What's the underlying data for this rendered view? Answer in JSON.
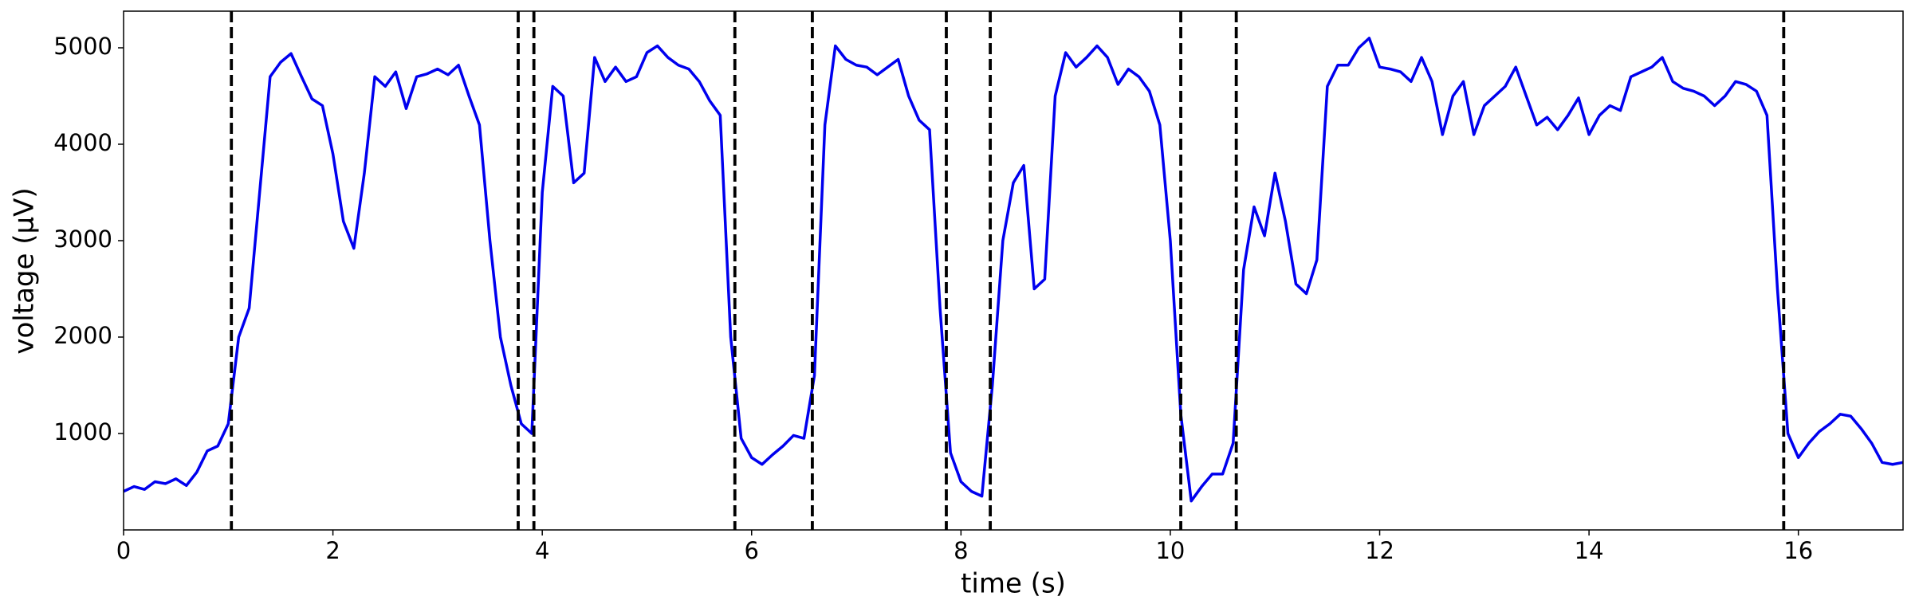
{
  "chart_data": {
    "type": "line",
    "xlabel": "time (s)",
    "ylabel": "voltage (μV)",
    "x": [
      0,
      0.1,
      0.2,
      0.3,
      0.4,
      0.5,
      0.6,
      0.7,
      0.8,
      0.9,
      1,
      1.1,
      1.2,
      1.3,
      1.4,
      1.5,
      1.6,
      1.7,
      1.8,
      1.9,
      2,
      2.1,
      2.2,
      2.3,
      2.4,
      2.5,
      2.6,
      2.7,
      2.8,
      2.9,
      3,
      3.1,
      3.2,
      3.3,
      3.4,
      3.5,
      3.6,
      3.7,
      3.8,
      3.9,
      4,
      4.1,
      4.2,
      4.3,
      4.4,
      4.5,
      4.6,
      4.7,
      4.8,
      4.9,
      5,
      5.1,
      5.2,
      5.3,
      5.4,
      5.5,
      5.6,
      5.7,
      5.8,
      5.9,
      6,
      6.1,
      6.2,
      6.3,
      6.4,
      6.5,
      6.6,
      6.7,
      6.8,
      6.9,
      7,
      7.1,
      7.2,
      7.3,
      7.4,
      7.5,
      7.6,
      7.7,
      7.8,
      7.9,
      8,
      8.1,
      8.2,
      8.3,
      8.4,
      8.5,
      8.6,
      8.7,
      8.8,
      8.9,
      9,
      9.1,
      9.2,
      9.3,
      9.4,
      9.5,
      9.6,
      9.7,
      9.8,
      9.9,
      10,
      10.1,
      10.2,
      10.3,
      10.4,
      10.5,
      10.6,
      10.7,
      10.8,
      10.9,
      11,
      11.1,
      11.2,
      11.3,
      11.4,
      11.5,
      11.6,
      11.7,
      11.8,
      11.9,
      12,
      12.1,
      12.2,
      12.3,
      12.4,
      12.5,
      12.6,
      12.7,
      12.8,
      12.9,
      13,
      13.1,
      13.2,
      13.3,
      13.4,
      13.5,
      13.6,
      13.7,
      13.8,
      13.9,
      14,
      14.1,
      14.2,
      14.3,
      14.4,
      14.5,
      14.6,
      14.7,
      14.8,
      14.9,
      15,
      15.1,
      15.2,
      15.3,
      15.4,
      15.5,
      15.6,
      15.7,
      15.8,
      15.9,
      16,
      16.1,
      16.2,
      16.3,
      16.4,
      16.5,
      16.6,
      16.7,
      16.8,
      16.9,
      17
    ],
    "values": [
      400,
      450,
      420,
      500,
      480,
      530,
      460,
      600,
      820,
      870,
      1100,
      2000,
      2300,
      3500,
      4700,
      4850,
      4940,
      4700,
      4470,
      4400,
      3900,
      3200,
      2920,
      3700,
      4700,
      4600,
      4750,
      4370,
      4700,
      4730,
      4780,
      4720,
      4820,
      4500,
      4200,
      3000,
      2000,
      1500,
      1100,
      1000,
      3500,
      4600,
      4500,
      3600,
      3700,
      4900,
      4650,
      4800,
      4650,
      4700,
      4950,
      5020,
      4900,
      4820,
      4780,
      4650,
      4450,
      4300,
      2000,
      950,
      750,
      680,
      780,
      870,
      980,
      950,
      1600,
      4200,
      5020,
      4880,
      4820,
      4800,
      4720,
      4800,
      4880,
      4500,
      4250,
      4150,
      2300,
      800,
      500,
      400,
      350,
      1500,
      3000,
      3600,
      3780,
      2500,
      2600,
      4500,
      4950,
      4800,
      4900,
      5020,
      4900,
      4620,
      4780,
      4700,
      4550,
      4200,
      3000,
      1200,
      300,
      450,
      580,
      580,
      900,
      2700,
      3350,
      3050,
      3700,
      3200,
      2550,
      2450,
      2800,
      4600,
      4820,
      4820,
      5000,
      5100,
      4800,
      4780,
      4750,
      4650,
      4900,
      4650,
      4100,
      4500,
      4650,
      4100,
      4400,
      4500,
      4600,
      4800,
      4500,
      4200,
      4280,
      4150,
      4300,
      4480,
      4100,
      4300,
      4400,
      4350,
      4700,
      4750,
      4800,
      4900,
      4650,
      4580,
      4550,
      4500,
      4400,
      4500,
      4650,
      4620,
      4550,
      4300,
      2500,
      1000,
      750,
      900,
      1020,
      1100,
      1200,
      1180,
      1050,
      900,
      700,
      680,
      700
    ],
    "color": "#0000ee",
    "vlines": [
      1.03,
      3.77,
      3.92,
      5.84,
      6.58,
      7.86,
      8.28,
      10.1,
      10.63,
      15.86
    ],
    "vline_color": "#000000",
    "xlim": [
      0,
      17
    ],
    "xticks": [
      0,
      2,
      4,
      6,
      8,
      10,
      12,
      14,
      16
    ],
    "ylim": [
      0,
      5380
    ],
    "yticks": [
      1000,
      2000,
      3000,
      4000,
      5000
    ]
  }
}
